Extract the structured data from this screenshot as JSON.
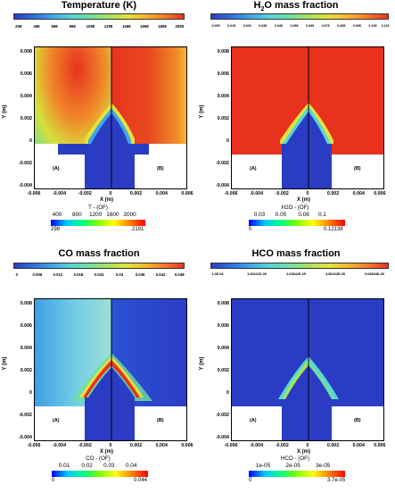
{
  "panels": [
    {
      "id": "temperature",
      "title": "Temperature (K)",
      "top_ticks": [
        "298",
        "498",
        "698",
        "898",
        "1098",
        "1298",
        "1498",
        "1698",
        "1898",
        "2098"
      ],
      "y_ticks": [
        "0.008",
        "0.006",
        "0.004",
        "0.002",
        "0",
        "-0.002",
        "-0.004"
      ],
      "x_ticks": [
        "-0.006",
        "-0.004",
        "-0.002",
        "0",
        "0.002",
        "0.004",
        "0.006"
      ],
      "xlabel": "X (m)",
      "ylabel": "Y (m)",
      "region_a": "(A)",
      "region_b": "(B)",
      "of_label": "T - (OF)",
      "of_ticks": [
        "400",
        "800",
        "1200",
        "1600",
        "2000"
      ],
      "of_min": "298",
      "of_max": "2191"
    },
    {
      "id": "h2o",
      "title_main": "H",
      "title_sub": "2",
      "title_rest": "O mass fraction",
      "top_ticks": [
        "0.005",
        "0.015",
        "0.025",
        "0.035",
        "0.045",
        "0.055",
        "0.065",
        "0.075",
        "0.085",
        "0.095",
        "0.105",
        "0.115"
      ],
      "y_ticks": [
        "0.008",
        "0.006",
        "0.004",
        "0.002",
        "0",
        "-0.002",
        "-0.004"
      ],
      "x_ticks": [
        "-0.006",
        "-0.004",
        "-0.002",
        "0",
        "0.002",
        "0.004",
        "0.006"
      ],
      "xlabel": "X (m)",
      "ylabel": "Y (m)",
      "region_a": "(A)",
      "region_b": "(B)",
      "of_label": "H2O - (OF)",
      "of_ticks": [
        "0.03",
        "0.05",
        "0.08",
        "0.1"
      ],
      "of_min": "0",
      "of_max": "0.12138"
    },
    {
      "id": "co",
      "title": "CO mass fraction",
      "top_ticks": [
        "0",
        "0.006",
        "0.012",
        "0.018",
        "0.024",
        "0.03",
        "0.036",
        "0.042",
        "0.048"
      ],
      "y_ticks": [
        "0.008",
        "0.006",
        "0.004",
        "0.002",
        "0",
        "-0.002",
        "-0.004"
      ],
      "x_ticks": [
        "-0.006",
        "-0.004",
        "-0.002",
        "0",
        "0.002",
        "0.004",
        "0.006"
      ],
      "xlabel": "X (m)",
      "ylabel": "Y (m)",
      "region_a": "(A)",
      "region_b": "(B)",
      "of_label": "CO - (OF)",
      "of_ticks": [
        "0.01",
        "0.02",
        "0.03",
        "0.04"
      ],
      "of_min": "0",
      "of_max": "0.044"
    },
    {
      "id": "hco",
      "title": "HCO mass fraction",
      "top_ticks": [
        "1.0E-06",
        "1.45421E-05",
        "2.63842E-05",
        "3.86263E-05",
        "5.08684E-05"
      ],
      "y_ticks": [
        "0.008",
        "0.006",
        "0.004",
        "0.002",
        "0",
        "-0.002",
        "-0.004"
      ],
      "x_ticks": [
        "-0.006",
        "-0.004",
        "-0.002",
        "0",
        "0.002",
        "0.004",
        "0.006"
      ],
      "xlabel": "X (m)",
      "ylabel": "Y (m)",
      "region_a": "(A)",
      "region_b": "(B)",
      "of_label": "HCO - (OF)",
      "of_ticks": [
        "1e-05",
        "2e-05",
        "3e-05"
      ],
      "of_min": "0",
      "of_max": "3.7e-05"
    }
  ],
  "colors": {
    "blue": "#1f3fd6",
    "red": "#e8321e",
    "green": "#39d17a",
    "cyan": "#7fd3f0"
  }
}
